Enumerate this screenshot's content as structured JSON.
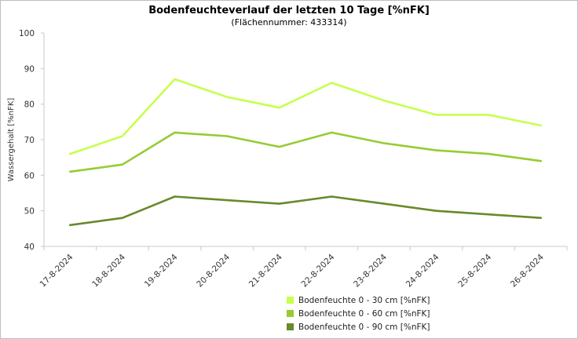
{
  "chart_data": {
    "type": "line",
    "title": "Bodenfeuchteverlauf der letzten 10 Tage [%nFK]",
    "subtitle": "(Flächennummer: 433314)",
    "ylabel": "Wassergehalt [%nFK]",
    "xlabel": "",
    "ylim": [
      40,
      100
    ],
    "yticks": [
      "40",
      "50",
      "60",
      "70",
      "80",
      "90",
      "100"
    ],
    "grid": false,
    "legend_position": "bottom",
    "categories": [
      "17-8-2024",
      "18-8-2024",
      "19-8-2024",
      "20-8-2024",
      "21-8-2024",
      "22-8-2024",
      "23-8-2024",
      "24-8-2024",
      "25-8-2024",
      "26-8-2024"
    ],
    "series": [
      {
        "name": "Bodenfeuchte 0 - 30 cm [%nFK]",
        "color": "#c6ff4d",
        "values": [
          66,
          71,
          87,
          82,
          79,
          86,
          81,
          77,
          77,
          74
        ]
      },
      {
        "name": "Bodenfeuchte 0 - 60 cm [%nFK]",
        "color": "#95cc33",
        "values": [
          61,
          63,
          72,
          71,
          68,
          72,
          69,
          67,
          66,
          64
        ]
      },
      {
        "name": "Bodenfeuchte 0 - 90 cm [%nFK]",
        "color": "#678a2b",
        "values": [
          46,
          48,
          54,
          53,
          52,
          54,
          52,
          50,
          49,
          48
        ]
      }
    ]
  }
}
